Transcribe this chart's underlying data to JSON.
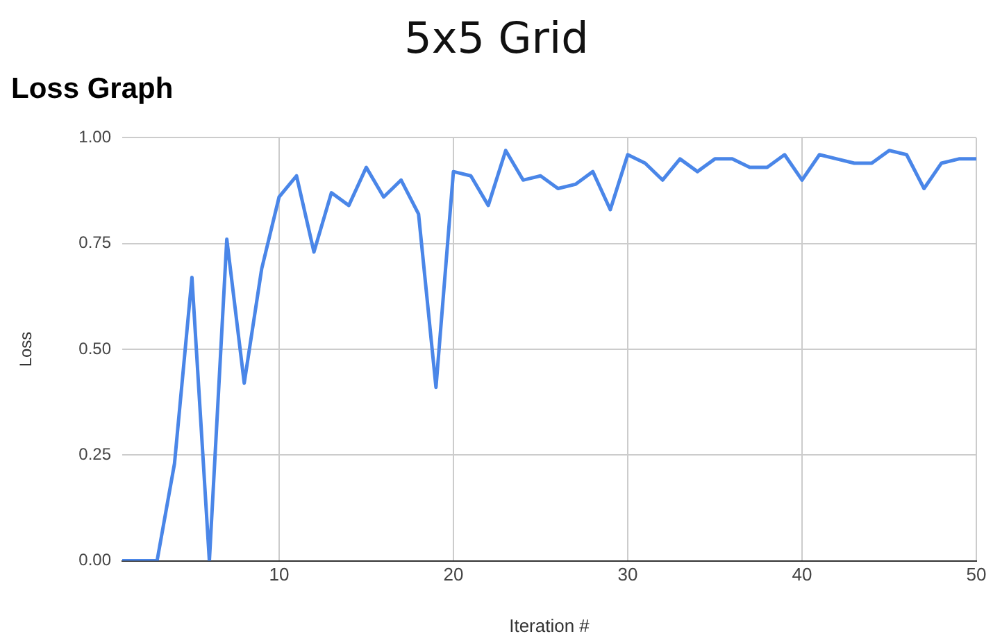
{
  "chart_data": {
    "type": "line",
    "title": "5x5 Grid",
    "subtitle": "Loss Graph",
    "xlabel": "Iteration #",
    "ylabel": "Loss",
    "x": [
      1,
      2,
      3,
      4,
      5,
      6,
      7,
      8,
      9,
      10,
      11,
      12,
      13,
      14,
      15,
      16,
      17,
      18,
      19,
      20,
      21,
      22,
      23,
      24,
      25,
      26,
      27,
      28,
      29,
      30,
      31,
      32,
      33,
      34,
      35,
      36,
      37,
      38,
      39,
      40,
      41,
      42,
      43,
      44,
      45,
      46,
      47,
      48,
      49,
      50
    ],
    "series": [
      {
        "color": "#4a86e8",
        "values": [
          0,
          0,
          0,
          0.23,
          0.67,
          0,
          0.76,
          0.42,
          0.69,
          0.86,
          0.91,
          0.73,
          0.87,
          0.84,
          0.93,
          0.86,
          0.9,
          0.82,
          0.41,
          0.92,
          0.91,
          0.84,
          0.97,
          0.9,
          0.91,
          0.88,
          0.89,
          0.92,
          0.83,
          0.96,
          0.94,
          0.9,
          0.95,
          0.92,
          0.95,
          0.95,
          0.93,
          0.93,
          0.96,
          0.9,
          0.96,
          0.95,
          0.94,
          0.94,
          0.97,
          0.96,
          0.88,
          0.94,
          0.95,
          0.95
        ]
      }
    ],
    "xlim": [
      1,
      50
    ],
    "xticks": [
      10,
      20,
      30,
      40,
      50
    ],
    "ylim": [
      0,
      1
    ],
    "yticks": [
      {
        "value": 0,
        "label": "0.00"
      },
      {
        "value": 0.25,
        "label": "0.25"
      },
      {
        "value": 0.5,
        "label": "0.50"
      },
      {
        "value": 0.75,
        "label": "0.75"
      },
      {
        "value": 1,
        "label": "1.00"
      }
    ],
    "grid": true,
    "legend": false,
    "marker": "none",
    "line_style": "solid"
  }
}
